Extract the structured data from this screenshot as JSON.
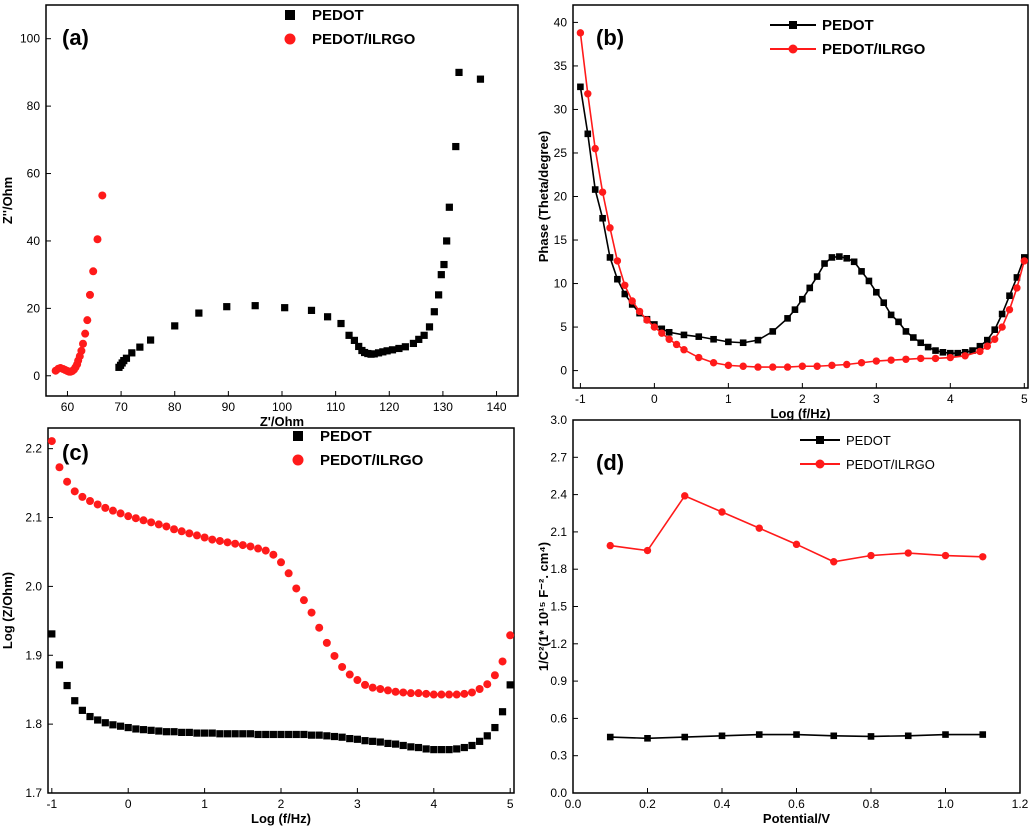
{
  "chart_data": [
    {
      "type": "scatter",
      "label": "(a)",
      "xlabel": "Z'/Ohm",
      "ylabel": "Z''/Ohm",
      "xlim": [
        56,
        144
      ],
      "ylim": [
        -6,
        110
      ],
      "xticks": [
        60,
        70,
        80,
        90,
        100,
        110,
        120,
        130,
        140
      ],
      "yticks": [
        0,
        20,
        40,
        60,
        80,
        100
      ],
      "legend_position": "top-right",
      "series": [
        {
          "name": "PEDOT",
          "marker": "square",
          "color": "#000000",
          "x": [
            69.6,
            69.9,
            70.2,
            70.5,
            71,
            72,
            73.5,
            75.5,
            80,
            84.5,
            89.7,
            95,
            100.5,
            105.5,
            108.5,
            111,
            112.5,
            113.5,
            114.3,
            114.9,
            115.4,
            116,
            116.6,
            117.2,
            118,
            118.8,
            119.6,
            120.6,
            121.8,
            123,
            124.5,
            125.5,
            126.5,
            127.5,
            128.4,
            129.2,
            129.7,
            130.2,
            130.7,
            131.2,
            132.4,
            133,
            137
          ],
          "y": [
            2.5,
            3.1,
            3.8,
            4.5,
            5.2,
            6.8,
            8.5,
            10.6,
            14.8,
            18.6,
            20.5,
            20.8,
            20.2,
            19.4,
            17.5,
            15.5,
            12,
            10.5,
            8.7,
            7.5,
            6.9,
            6.6,
            6.4,
            6.5,
            6.8,
            7.1,
            7.4,
            7.7,
            8.1,
            8.6,
            9.6,
            10.8,
            12,
            14.5,
            19,
            24,
            30,
            33,
            40,
            50,
            68,
            90,
            88
          ]
        },
        {
          "name": "PEDOT/ILRGO",
          "marker": "circle",
          "color": "#ff1a1a",
          "x": [
            57.8,
            58.3,
            58.7,
            59.2,
            59.6,
            60,
            60.3,
            60.6,
            60.9,
            61.2,
            61.5,
            61.8,
            62,
            62.3,
            62.6,
            62.9,
            63.3,
            63.7,
            64.2,
            64.8,
            65.6,
            66.5
          ],
          "y": [
            1.5,
            2.1,
            2.3,
            2.0,
            1.7,
            1.4,
            1.2,
            1.2,
            1.4,
            1.8,
            2.5,
            3.4,
            4.5,
            5.8,
            7.4,
            9.5,
            12.5,
            16.5,
            24,
            31,
            40.5,
            53.5
          ]
        }
      ]
    },
    {
      "type": "line",
      "label": "(b)",
      "xlabel": "Log (f/Hz)",
      "ylabel": "Phase (Theta/degree)",
      "xlim": [
        -1.1,
        5.05
      ],
      "ylim": [
        -2,
        42
      ],
      "xticks": [
        -1,
        0,
        1,
        2,
        3,
        4,
        5
      ],
      "yticks": [
        0,
        5,
        10,
        15,
        20,
        25,
        30,
        35,
        40
      ],
      "legend_position": "top-right",
      "series": [
        {
          "name": "PEDOT",
          "marker": "square",
          "color": "#000000",
          "x": [
            -1,
            -0.9,
            -0.8,
            -0.7,
            -0.6,
            -0.5,
            -0.4,
            -0.3,
            -0.2,
            -0.1,
            0,
            0.1,
            0.2,
            0.4,
            0.6,
            0.8,
            1,
            1.2,
            1.4,
            1.6,
            1.8,
            1.9,
            2,
            2.1,
            2.2,
            2.3,
            2.4,
            2.5,
            2.6,
            2.7,
            2.8,
            2.9,
            3,
            3.1,
            3.2,
            3.3,
            3.4,
            3.5,
            3.6,
            3.7,
            3.8,
            3.9,
            4,
            4.1,
            4.2,
            4.3,
            4.4,
            4.5,
            4.6,
            4.7,
            4.8,
            4.9,
            5
          ],
          "y": [
            32.6,
            27.2,
            20.8,
            17.5,
            13,
            10.5,
            8.8,
            7.6,
            6.6,
            5.9,
            5.3,
            4.8,
            4.4,
            4.1,
            3.9,
            3.6,
            3.3,
            3.2,
            3.5,
            4.5,
            6,
            7,
            8.2,
            9.5,
            10.8,
            12.3,
            13,
            13.1,
            12.9,
            12.5,
            11.4,
            10.3,
            9,
            7.8,
            6.4,
            5.6,
            4.5,
            3.8,
            3.2,
            2.7,
            2.3,
            2.1,
            2.0,
            2.0,
            2.1,
            2.3,
            2.8,
            3.5,
            4.7,
            6.5,
            8.6,
            10.7,
            13
          ]
        },
        {
          "name": "PEDOT/ILRGO",
          "marker": "circle",
          "color": "#ff1a1a",
          "x": [
            -1,
            -0.9,
            -0.8,
            -0.7,
            -0.6,
            -0.5,
            -0.4,
            -0.3,
            -0.2,
            -0.1,
            0,
            0.1,
            0.2,
            0.3,
            0.4,
            0.6,
            0.8,
            1,
            1.2,
            1.4,
            1.6,
            1.8,
            2,
            2.2,
            2.4,
            2.6,
            2.8,
            3,
            3.2,
            3.4,
            3.6,
            3.8,
            4,
            4.2,
            4.4,
            4.5,
            4.6,
            4.7,
            4.8,
            4.9,
            5
          ],
          "y": [
            38.8,
            31.8,
            25.5,
            20.5,
            16.4,
            12.6,
            9.8,
            8,
            6.8,
            5.8,
            5,
            4.3,
            3.6,
            3,
            2.4,
            1.5,
            0.9,
            0.6,
            0.5,
            0.4,
            0.4,
            0.4,
            0.5,
            0.5,
            0.6,
            0.7,
            0.9,
            1.1,
            1.2,
            1.3,
            1.4,
            1.4,
            1.5,
            1.7,
            2.2,
            2.8,
            3.6,
            5,
            7,
            9.5,
            12.6
          ]
        }
      ]
    },
    {
      "type": "scatter",
      "label": "(c)",
      "xlabel": "Log (f/Hz)",
      "ylabel": "Log (Z/Ohm)",
      "xlim": [
        -1.05,
        5.05
      ],
      "ylim": [
        1.7,
        2.23
      ],
      "xticks": [
        -1,
        0,
        1,
        2,
        3,
        4,
        5
      ],
      "yticks": [
        1.7,
        1.8,
        1.9,
        2.0,
        2.1,
        2.2
      ],
      "legend_position": "top-right",
      "series": [
        {
          "name": "PEDOT",
          "marker": "square",
          "color": "#000000",
          "x": [
            -1,
            -0.9,
            -0.8,
            -0.7,
            -0.6,
            -0.5,
            -0.4,
            -0.3,
            -0.2,
            -0.1,
            0,
            0.1,
            0.2,
            0.3,
            0.4,
            0.5,
            0.6,
            0.7,
            0.8,
            0.9,
            1,
            1.1,
            1.2,
            1.3,
            1.4,
            1.5,
            1.6,
            1.7,
            1.8,
            1.9,
            2,
            2.1,
            2.2,
            2.3,
            2.4,
            2.5,
            2.6,
            2.7,
            2.8,
            2.9,
            3,
            3.1,
            3.2,
            3.3,
            3.4,
            3.5,
            3.6,
            3.7,
            3.8,
            3.9,
            4,
            4.1,
            4.2,
            4.3,
            4.4,
            4.5,
            4.6,
            4.7,
            4.8,
            4.9,
            5
          ],
          "y": [
            1.931,
            1.886,
            1.856,
            1.834,
            1.82,
            1.811,
            1.806,
            1.802,
            1.799,
            1.797,
            1.795,
            1.793,
            1.792,
            1.791,
            1.79,
            1.789,
            1.789,
            1.788,
            1.788,
            1.787,
            1.787,
            1.787,
            1.786,
            1.786,
            1.786,
            1.786,
            1.786,
            1.785,
            1.785,
            1.785,
            1.785,
            1.785,
            1.785,
            1.785,
            1.784,
            1.784,
            1.783,
            1.782,
            1.781,
            1.779,
            1.778,
            1.776,
            1.775,
            1.774,
            1.772,
            1.771,
            1.769,
            1.767,
            1.766,
            1.764,
            1.763,
            1.763,
            1.763,
            1.764,
            1.766,
            1.769,
            1.775,
            1.783,
            1.795,
            1.818,
            1.857
          ]
        },
        {
          "name": "PEDOT/ILRGO",
          "marker": "circle",
          "color": "#ff1a1a",
          "x": [
            -1,
            -0.9,
            -0.8,
            -0.7,
            -0.6,
            -0.5,
            -0.4,
            -0.3,
            -0.2,
            -0.1,
            0,
            0.1,
            0.2,
            0.3,
            0.4,
            0.5,
            0.6,
            0.7,
            0.8,
            0.9,
            1,
            1.1,
            1.2,
            1.3,
            1.4,
            1.5,
            1.6,
            1.7,
            1.8,
            1.9,
            2,
            2.1,
            2.2,
            2.3,
            2.4,
            2.5,
            2.6,
            2.7,
            2.8,
            2.9,
            3,
            3.1,
            3.2,
            3.3,
            3.4,
            3.5,
            3.6,
            3.7,
            3.8,
            3.9,
            4,
            4.1,
            4.2,
            4.3,
            4.4,
            4.5,
            4.6,
            4.7,
            4.8,
            4.9,
            5
          ],
          "y": [
            2.211,
            2.173,
            2.152,
            2.138,
            2.13,
            2.124,
            2.119,
            2.114,
            2.11,
            2.106,
            2.102,
            2.099,
            2.096,
            2.093,
            2.09,
            2.087,
            2.083,
            2.08,
            2.077,
            2.074,
            2.071,
            2.068,
            2.066,
            2.064,
            2.062,
            2.06,
            2.058,
            2.055,
            2.052,
            2.046,
            2.035,
            2.019,
            1.997,
            1.98,
            1.962,
            1.94,
            1.918,
            1.899,
            1.883,
            1.872,
            1.864,
            1.857,
            1.853,
            1.851,
            1.849,
            1.847,
            1.846,
            1.845,
            1.845,
            1.844,
            1.843,
            1.843,
            1.843,
            1.843,
            1.844,
            1.846,
            1.851,
            1.858,
            1.871,
            1.891,
            1.929
          ]
        }
      ]
    },
    {
      "type": "line",
      "label": "(d)",
      "xlabel": "Potential/V",
      "ylabel": "1/C²(1* 10¹⁵ F⁻². cm⁴)",
      "xlim": [
        0.0,
        1.2
      ],
      "ylim": [
        0.0,
        3.0
      ],
      "xticks": [
        0.0,
        0.2,
        0.4,
        0.6,
        0.8,
        1.0,
        1.2
      ],
      "yticks": [
        0.0,
        0.3,
        0.6,
        0.9,
        1.2,
        1.5,
        1.8,
        2.1,
        2.4,
        2.7,
        3.0
      ],
      "legend_position": "top-right",
      "series": [
        {
          "name": "PEDOT",
          "marker": "square",
          "color": "#000000",
          "x": [
            0.1,
            0.2,
            0.3,
            0.4,
            0.5,
            0.6,
            0.7,
            0.8,
            0.9,
            1.0,
            1.1
          ],
          "y": [
            0.45,
            0.44,
            0.45,
            0.46,
            0.47,
            0.47,
            0.46,
            0.455,
            0.46,
            0.47,
            0.47
          ]
        },
        {
          "name": "PEDOT/ILRGO",
          "marker": "circle",
          "color": "#ff1a1a",
          "x": [
            0.1,
            0.2,
            0.3,
            0.4,
            0.5,
            0.6,
            0.7,
            0.8,
            0.9,
            1.0,
            1.1
          ],
          "y": [
            1.99,
            1.95,
            2.39,
            2.26,
            2.13,
            2.0,
            1.86,
            1.91,
            1.93,
            1.91,
            1.9
          ]
        }
      ]
    }
  ]
}
